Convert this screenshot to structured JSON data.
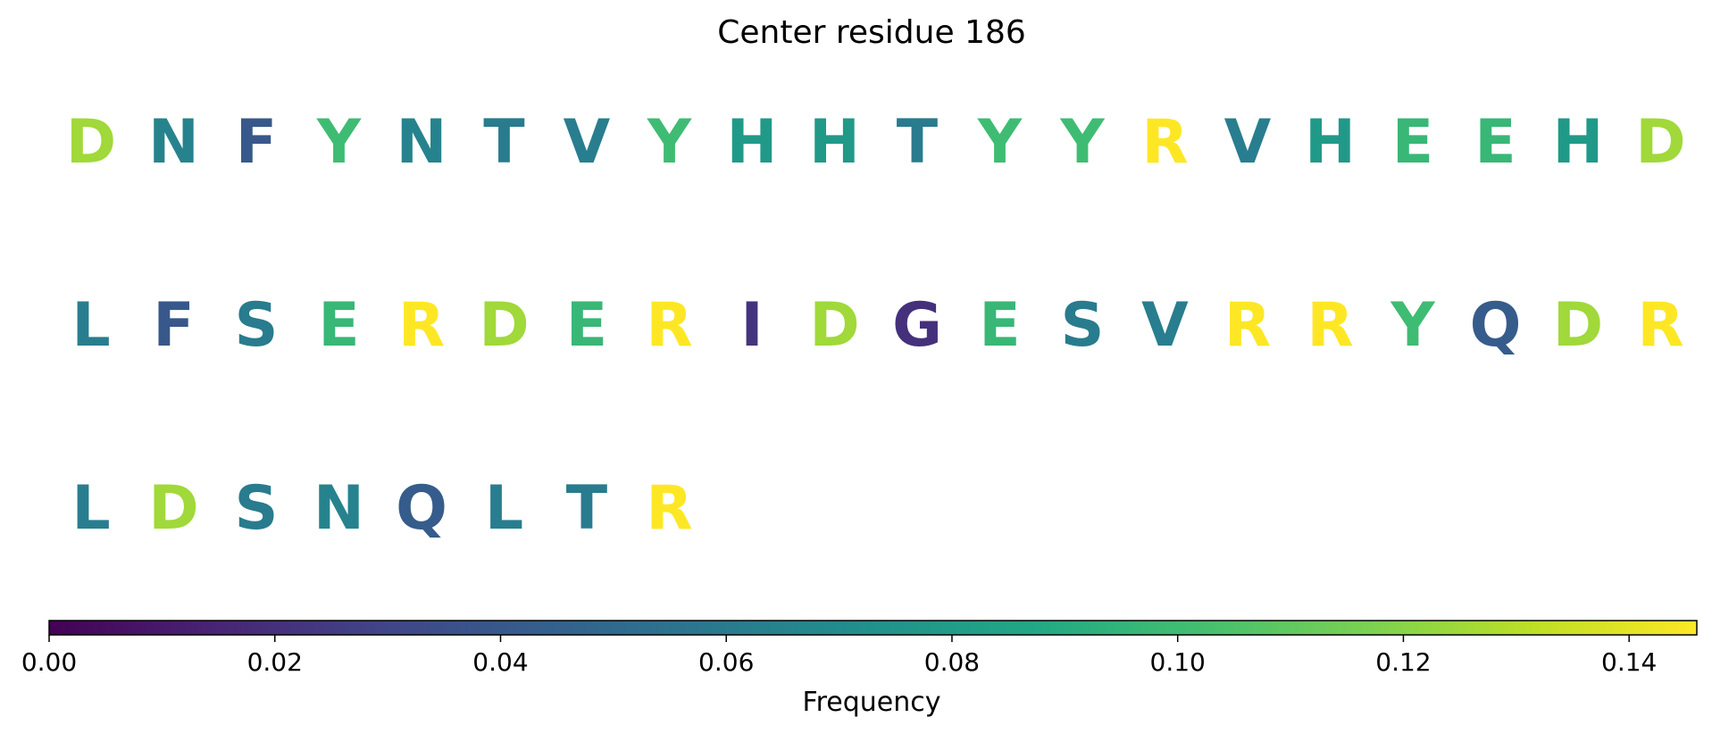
{
  "chart_data": {
    "type": "sequence-heatmap",
    "title": "Center residue 186",
    "residues": [
      {
        "letter": "D",
        "frequency": 0.125
      },
      {
        "letter": "N",
        "frequency": 0.065
      },
      {
        "letter": "F",
        "frequency": 0.04
      },
      {
        "letter": "Y",
        "frequency": 0.1
      },
      {
        "letter": "N",
        "frequency": 0.065
      },
      {
        "letter": "T",
        "frequency": 0.06
      },
      {
        "letter": "V",
        "frequency": 0.062
      },
      {
        "letter": "Y",
        "frequency": 0.1
      },
      {
        "letter": "H",
        "frequency": 0.078
      },
      {
        "letter": "H",
        "frequency": 0.078
      },
      {
        "letter": "T",
        "frequency": 0.06
      },
      {
        "letter": "Y",
        "frequency": 0.1
      },
      {
        "letter": "Y",
        "frequency": 0.1
      },
      {
        "letter": "R",
        "frequency": 0.146
      },
      {
        "letter": "V",
        "frequency": 0.062
      },
      {
        "letter": "H",
        "frequency": 0.078
      },
      {
        "letter": "E",
        "frequency": 0.097
      },
      {
        "letter": "E",
        "frequency": 0.097
      },
      {
        "letter": "H",
        "frequency": 0.078
      },
      {
        "letter": "D",
        "frequency": 0.125
      },
      {
        "letter": "L",
        "frequency": 0.062
      },
      {
        "letter": "F",
        "frequency": 0.04
      },
      {
        "letter": "S",
        "frequency": 0.06
      },
      {
        "letter": "E",
        "frequency": 0.097
      },
      {
        "letter": "R",
        "frequency": 0.146
      },
      {
        "letter": "D",
        "frequency": 0.125
      },
      {
        "letter": "E",
        "frequency": 0.097
      },
      {
        "letter": "R",
        "frequency": 0.146
      },
      {
        "letter": "I",
        "frequency": 0.022
      },
      {
        "letter": "D",
        "frequency": 0.125
      },
      {
        "letter": "G",
        "frequency": 0.02
      },
      {
        "letter": "E",
        "frequency": 0.097
      },
      {
        "letter": "S",
        "frequency": 0.06
      },
      {
        "letter": "V",
        "frequency": 0.062
      },
      {
        "letter": "R",
        "frequency": 0.146
      },
      {
        "letter": "R",
        "frequency": 0.146
      },
      {
        "letter": "Y",
        "frequency": 0.1
      },
      {
        "letter": "Q",
        "frequency": 0.042
      },
      {
        "letter": "D",
        "frequency": 0.125
      },
      {
        "letter": "R",
        "frequency": 0.146
      },
      {
        "letter": "L",
        "frequency": 0.062
      },
      {
        "letter": "D",
        "frequency": 0.125
      },
      {
        "letter": "S",
        "frequency": 0.06
      },
      {
        "letter": "N",
        "frequency": 0.065
      },
      {
        "letter": "Q",
        "frequency": 0.042
      },
      {
        "letter": "L",
        "frequency": 0.062
      },
      {
        "letter": "T",
        "frequency": 0.06
      },
      {
        "letter": "R",
        "frequency": 0.146
      }
    ],
    "residues_per_row": 20,
    "colorbar": {
      "label": "Frequency",
      "colormap": "viridis",
      "range": [
        0,
        0.146
      ],
      "ticks": [
        0.0,
        0.02,
        0.04,
        0.06,
        0.08,
        0.1,
        0.12,
        0.14
      ],
      "tick_labels": [
        "0.00",
        "0.02",
        "0.04",
        "0.06",
        "0.08",
        "0.10",
        "0.12",
        "0.14"
      ],
      "orientation": "horizontal",
      "placement": "bottom"
    }
  }
}
